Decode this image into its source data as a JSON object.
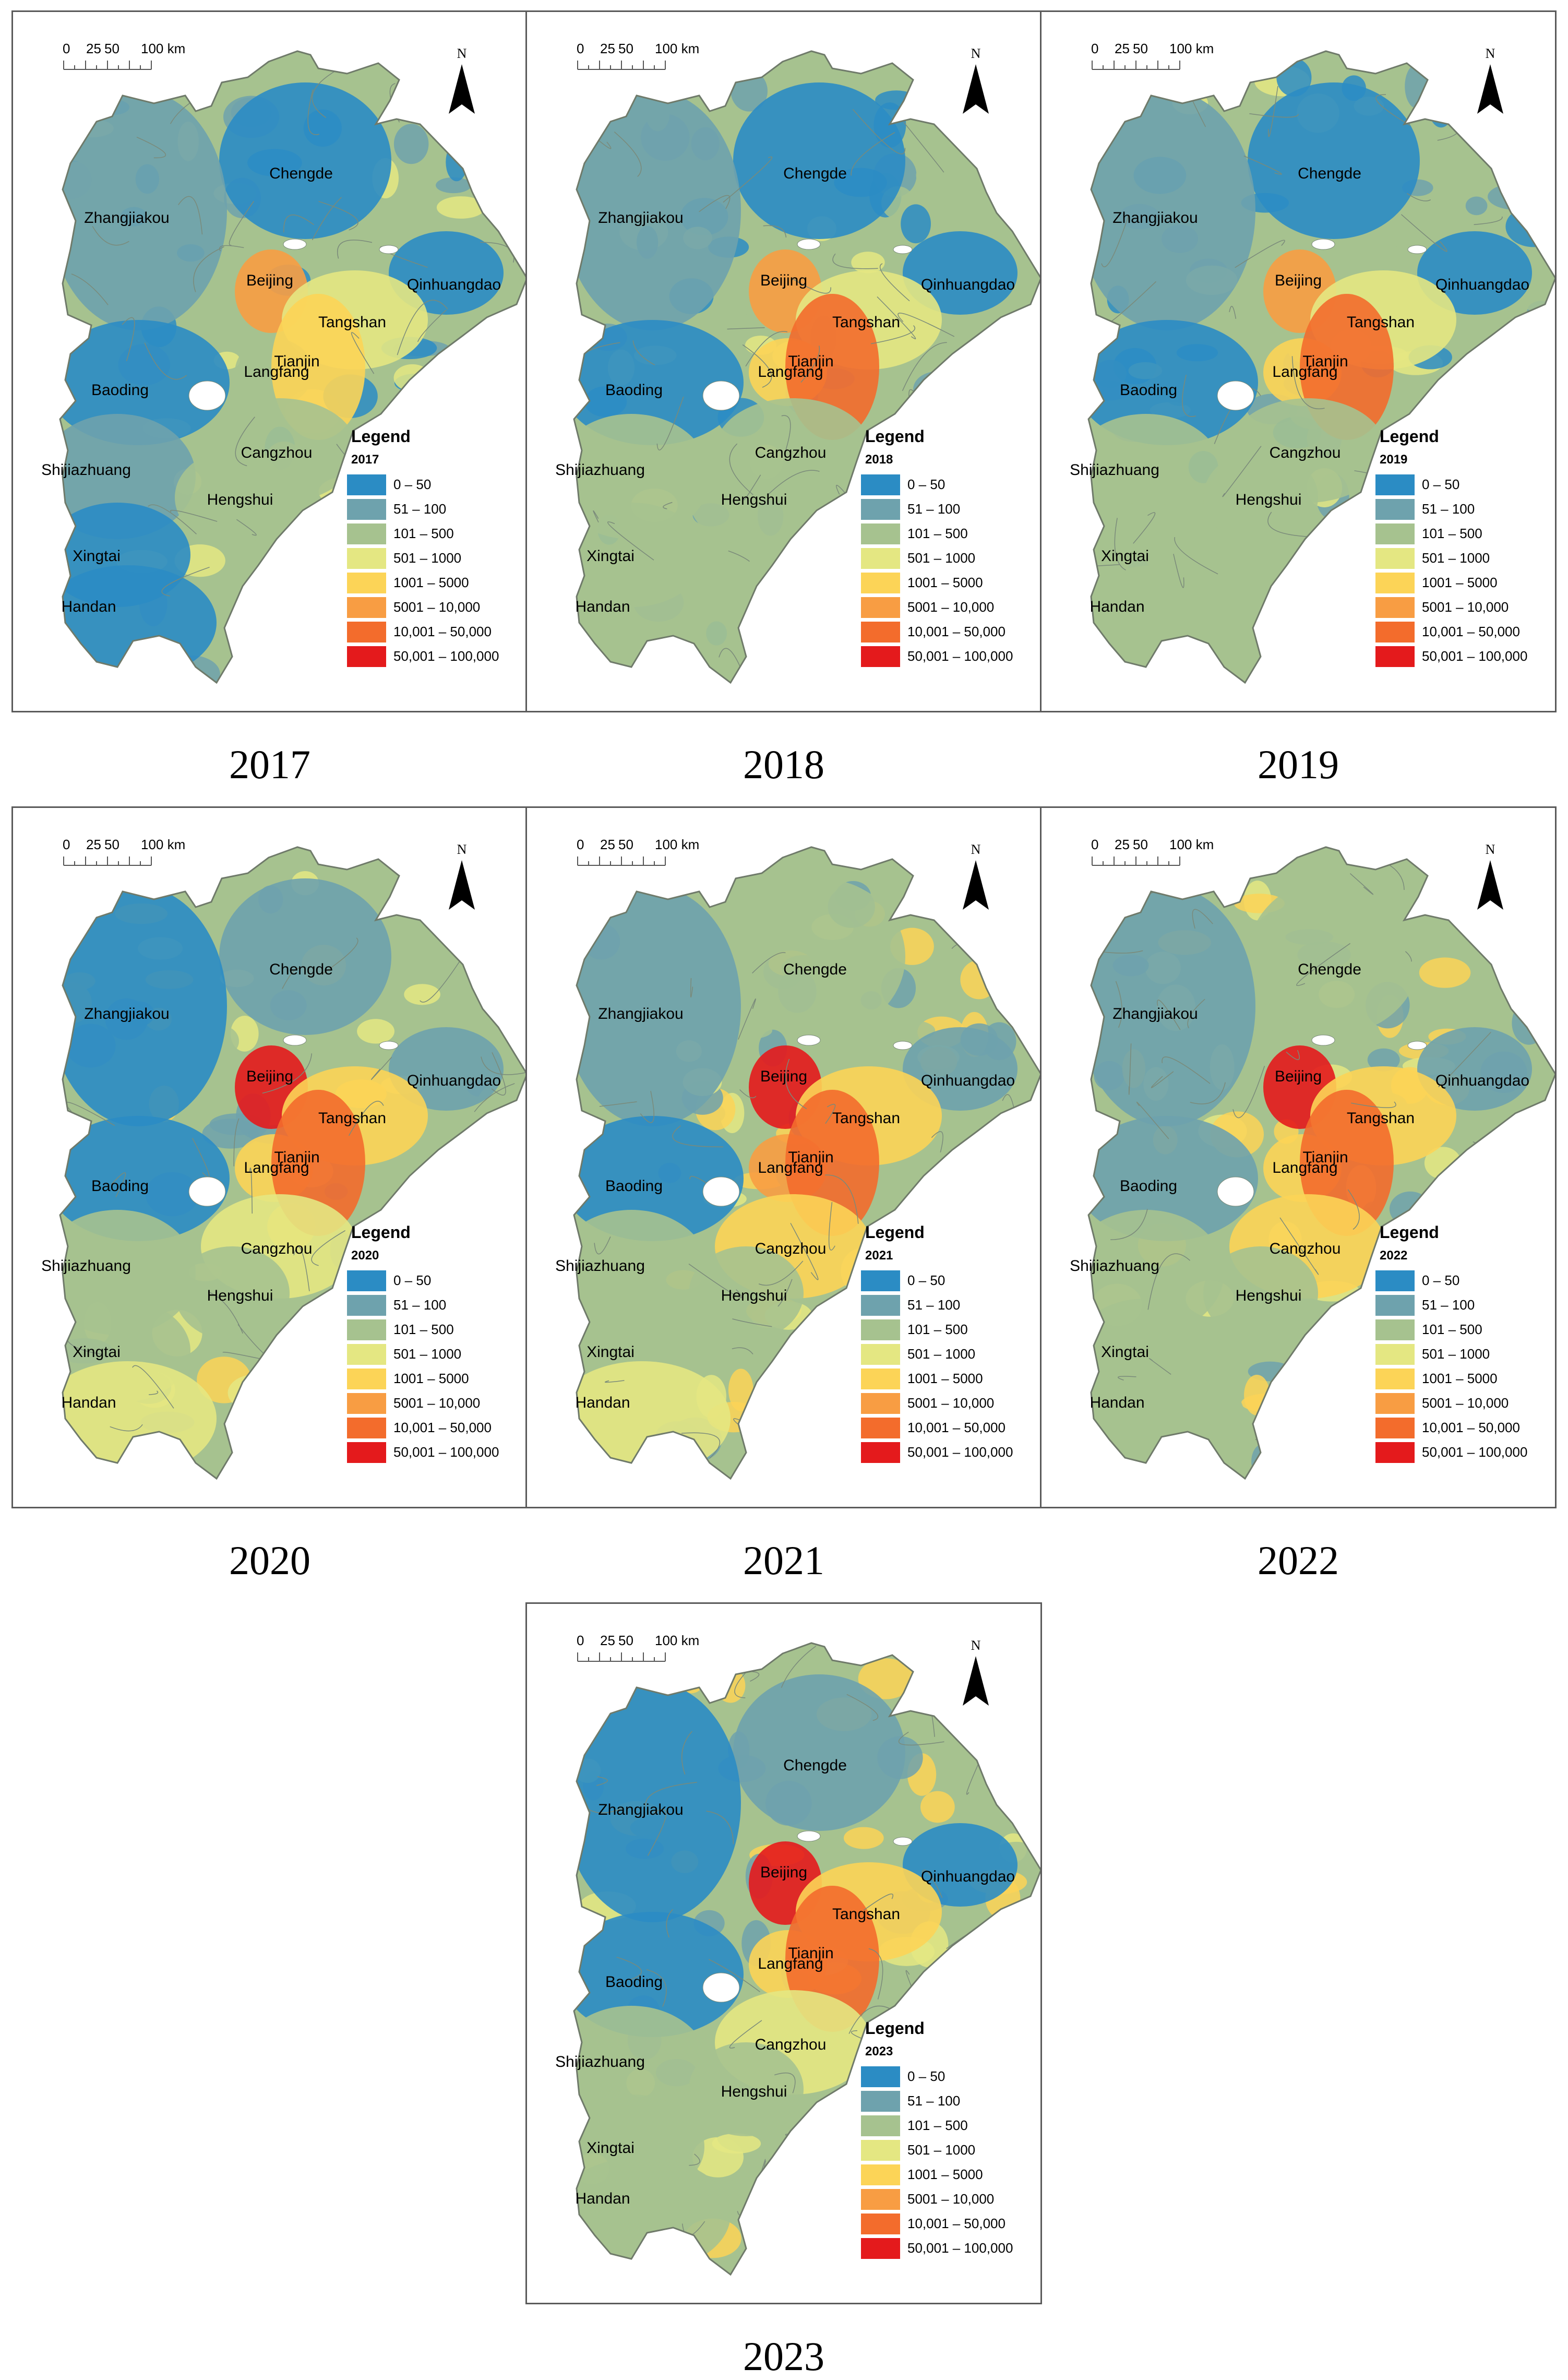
{
  "figure": {
    "scale_labels": [
      "0",
      "25",
      "50",
      "100 km"
    ],
    "north_label": "N",
    "legend_title": "Legend",
    "categories": [
      "0 – 50",
      "51 – 100",
      "101 – 500",
      "501 – 1000",
      "1001 – 5000",
      "5001 – 10,000",
      "10,001 – 50,000",
      "50,001 – 100,000"
    ],
    "category_colors": [
      "#2b8cc4",
      "#6ea2ad",
      "#a6c28f",
      "#e4e782",
      "#fcd457",
      "#f89d43",
      "#f36c2c",
      "#e41a1c"
    ],
    "cities": [
      "Chengde",
      "Zhangjiakou",
      "Beijing",
      "Qinhuangdao",
      "Tangshan",
      "Langfang",
      "Tianjin",
      "Baoding",
      "Cangzhou",
      "Shijiazhuang",
      "Hengshui",
      "Xingtai",
      "Handan"
    ]
  },
  "panels": [
    {
      "year": "2017",
      "caption": "2017",
      "city_category": [
        0,
        1,
        5,
        0,
        3,
        2,
        4,
        0,
        2,
        1,
        2,
        0,
        0
      ]
    },
    {
      "year": "2018",
      "caption": "2018",
      "city_category": [
        0,
        1,
        5,
        0,
        3,
        4,
        6,
        0,
        2,
        2,
        2,
        2,
        2
      ]
    },
    {
      "year": "2019",
      "caption": "2019",
      "city_category": [
        0,
        1,
        5,
        0,
        3,
        4,
        6,
        0,
        2,
        2,
        2,
        2,
        2
      ]
    },
    {
      "year": "2020",
      "caption": "2020",
      "city_category": [
        1,
        0,
        7,
        1,
        4,
        4,
        6,
        0,
        3,
        2,
        2,
        2,
        3
      ]
    },
    {
      "year": "2021",
      "caption": "2021",
      "city_category": [
        2,
        1,
        7,
        1,
        4,
        5,
        6,
        0,
        4,
        2,
        2,
        2,
        3
      ]
    },
    {
      "year": "2022",
      "caption": "2022",
      "city_category": [
        2,
        1,
        7,
        1,
        4,
        4,
        6,
        1,
        4,
        2,
        2,
        2,
        2
      ]
    },
    {
      "year": "2023",
      "caption": "2023",
      "city_category": [
        1,
        0,
        7,
        0,
        4,
        4,
        6,
        0,
        3,
        2,
        2,
        2,
        2
      ]
    }
  ]
}
